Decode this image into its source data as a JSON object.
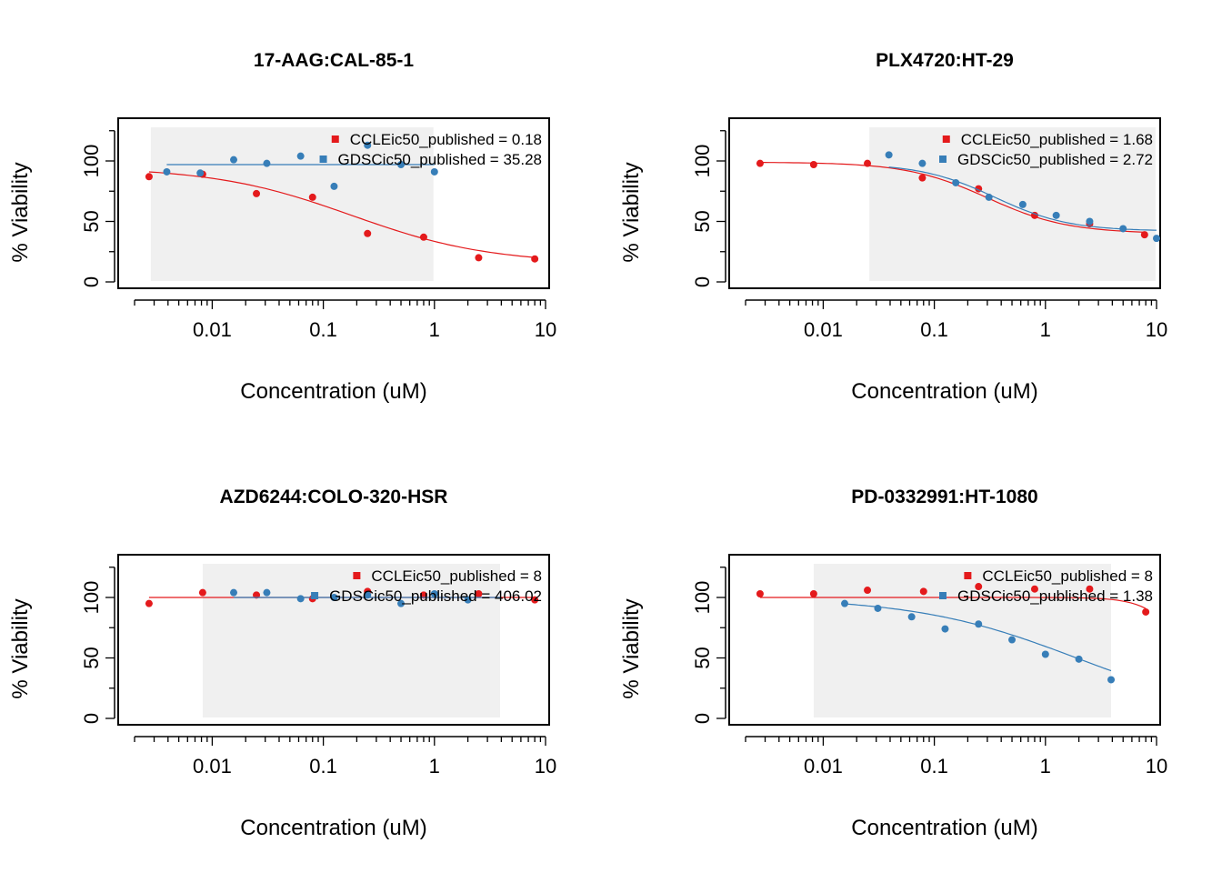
{
  "chart_data": [
    {
      "type": "scatter",
      "title": "17-AAG:CAL-85-1",
      "xlabel": "Concentration (uM)",
      "ylabel": "% Viability",
      "xscale": "log",
      "xlim": [
        0.002,
        10
      ],
      "ylim": [
        0,
        130
      ],
      "xticks": [
        "0.01",
        "0.1",
        "1",
        "10"
      ],
      "yticks": [
        "0",
        "50",
        "100"
      ],
      "legend_position": "top-right",
      "shaded_range": [
        0.0028,
        0.98
      ],
      "series": [
        {
          "name": "CCLEic50_published = 0.18",
          "color": "#e41a1c",
          "x": [
            0.0027,
            0.0082,
            0.025,
            0.08,
            0.25,
            0.8,
            2.5,
            8
          ],
          "y": [
            87,
            89,
            73,
            70,
            40,
            37,
            20,
            19
          ],
          "fit": {
            "top": 95,
            "bottom": 15,
            "ec50": 0.18,
            "hill": 0.7,
            "xrange": [
              0.0027,
              8
            ]
          }
        },
        {
          "name": "GDSCic50_published = 35.28",
          "color": "#377eb8",
          "x": [
            0.0039,
            0.0078,
            0.0156,
            0.031,
            0.0625,
            0.125,
            0.25,
            0.5,
            1
          ],
          "y": [
            91,
            90,
            101,
            98,
            104,
            79,
            113,
            97,
            91
          ],
          "fit": {
            "top": 97,
            "bottom": 97,
            "ec50": 35.28,
            "hill": 1,
            "xrange": [
              0.0039,
              1
            ]
          }
        }
      ]
    },
    {
      "type": "scatter",
      "title": "PLX4720:HT-29",
      "xlabel": "Concentration (uM)",
      "ylabel": "% Viability",
      "xscale": "log",
      "xlim": [
        0.002,
        10
      ],
      "ylim": [
        0,
        130
      ],
      "xticks": [
        "0.01",
        "0.1",
        "1",
        "10"
      ],
      "yticks": [
        "0",
        "50",
        "100"
      ],
      "legend_position": "top-right",
      "shaded_range": [
        0.026,
        9.8
      ],
      "series": [
        {
          "name": "CCLEic50_published = 1.68",
          "color": "#e41a1c",
          "x": [
            0.0027,
            0.0082,
            0.025,
            0.078,
            0.25,
            0.8,
            2.5,
            7.8
          ],
          "y": [
            98,
            97,
            98,
            86,
            77,
            55,
            48,
            39
          ],
          "fit": {
            "top": 99,
            "bottom": 40,
            "ec50": 0.3,
            "hill": 1.2,
            "xrange": [
              0.0027,
              7.8
            ]
          }
        },
        {
          "name": "GDSCic50_published = 2.72",
          "color": "#377eb8",
          "x": [
            0.039,
            0.078,
            0.156,
            0.31,
            0.625,
            1.25,
            2.5,
            5,
            10
          ],
          "y": [
            105,
            98,
            82,
            70,
            64,
            55,
            50,
            44,
            36
          ],
          "fit": {
            "top": 98,
            "bottom": 42,
            "ec50": 0.35,
            "hill": 1.3,
            "xrange": [
              0.039,
              10
            ]
          }
        }
      ]
    },
    {
      "type": "scatter",
      "title": "AZD6244:COLO-320-HSR",
      "xlabel": "Concentration (uM)",
      "ylabel": "% Viability",
      "xscale": "log",
      "xlim": [
        0.002,
        10
      ],
      "ylim": [
        0,
        130
      ],
      "xticks": [
        "0.01",
        "0.1",
        "1",
        "10"
      ],
      "yticks": [
        "0",
        "50",
        "100"
      ],
      "legend_position": "top-right",
      "shaded_range": [
        0.0082,
        3.9
      ],
      "series": [
        {
          "name": "CCLEic50_published = 8",
          "color": "#e41a1c",
          "x": [
            0.0027,
            0.0082,
            0.025,
            0.08,
            0.25,
            0.8,
            2.5,
            8
          ],
          "y": [
            95,
            104,
            102,
            99,
            105,
            102,
            103,
            98
          ],
          "fit": {
            "top": 100,
            "bottom": 100,
            "ec50": 8,
            "hill": 1,
            "xrange": [
              0.0027,
              8
            ]
          }
        },
        {
          "name": "GDSCic50_published = 406.02",
          "color": "#377eb8",
          "x": [
            0.0156,
            0.031,
            0.0625,
            0.125,
            0.25,
            0.5,
            1,
            2
          ],
          "y": [
            104,
            104,
            99,
            100,
            102,
            95,
            103,
            98
          ],
          "fit": {
            "top": 100,
            "bottom": 100,
            "ec50": 406.02,
            "hill": 1,
            "xrange": [
              0.0156,
              3.9
            ]
          }
        }
      ]
    },
    {
      "type": "scatter",
      "title": "PD-0332991:HT-1080",
      "xlabel": "Concentration (uM)",
      "ylabel": "% Viability",
      "xscale": "log",
      "xlim": [
        0.002,
        10
      ],
      "ylim": [
        0,
        130
      ],
      "xticks": [
        "0.01",
        "0.1",
        "1",
        "10"
      ],
      "yticks": [
        "0",
        "50",
        "100"
      ],
      "legend_position": "top-right",
      "shaded_range": [
        0.0082,
        3.9
      ],
      "series": [
        {
          "name": "CCLEic50_published = 8",
          "color": "#e41a1c",
          "x": [
            0.0027,
            0.0082,
            0.025,
            0.08,
            0.25,
            0.8,
            2.5,
            8
          ],
          "y": [
            103,
            103,
            106,
            105,
            109,
            107,
            107,
            88
          ],
          "fit": {
            "top": 100,
            "bottom": 0,
            "ec50": 20,
            "hill": 2.5,
            "xrange": [
              0.0027,
              8
            ]
          }
        },
        {
          "name": "GDSCic50_published = 1.38",
          "color": "#377eb8",
          "x": [
            0.0156,
            0.031,
            0.0625,
            0.125,
            0.25,
            0.5,
            1,
            2,
            3.9
          ],
          "y": [
            95,
            91,
            84,
            74,
            78,
            65,
            53,
            49,
            32
          ],
          "fit": {
            "top": 100,
            "bottom": 0,
            "ec50": 1.9,
            "hill": 0.6,
            "xrange": [
              0.0156,
              3.9
            ]
          }
        }
      ]
    }
  ]
}
